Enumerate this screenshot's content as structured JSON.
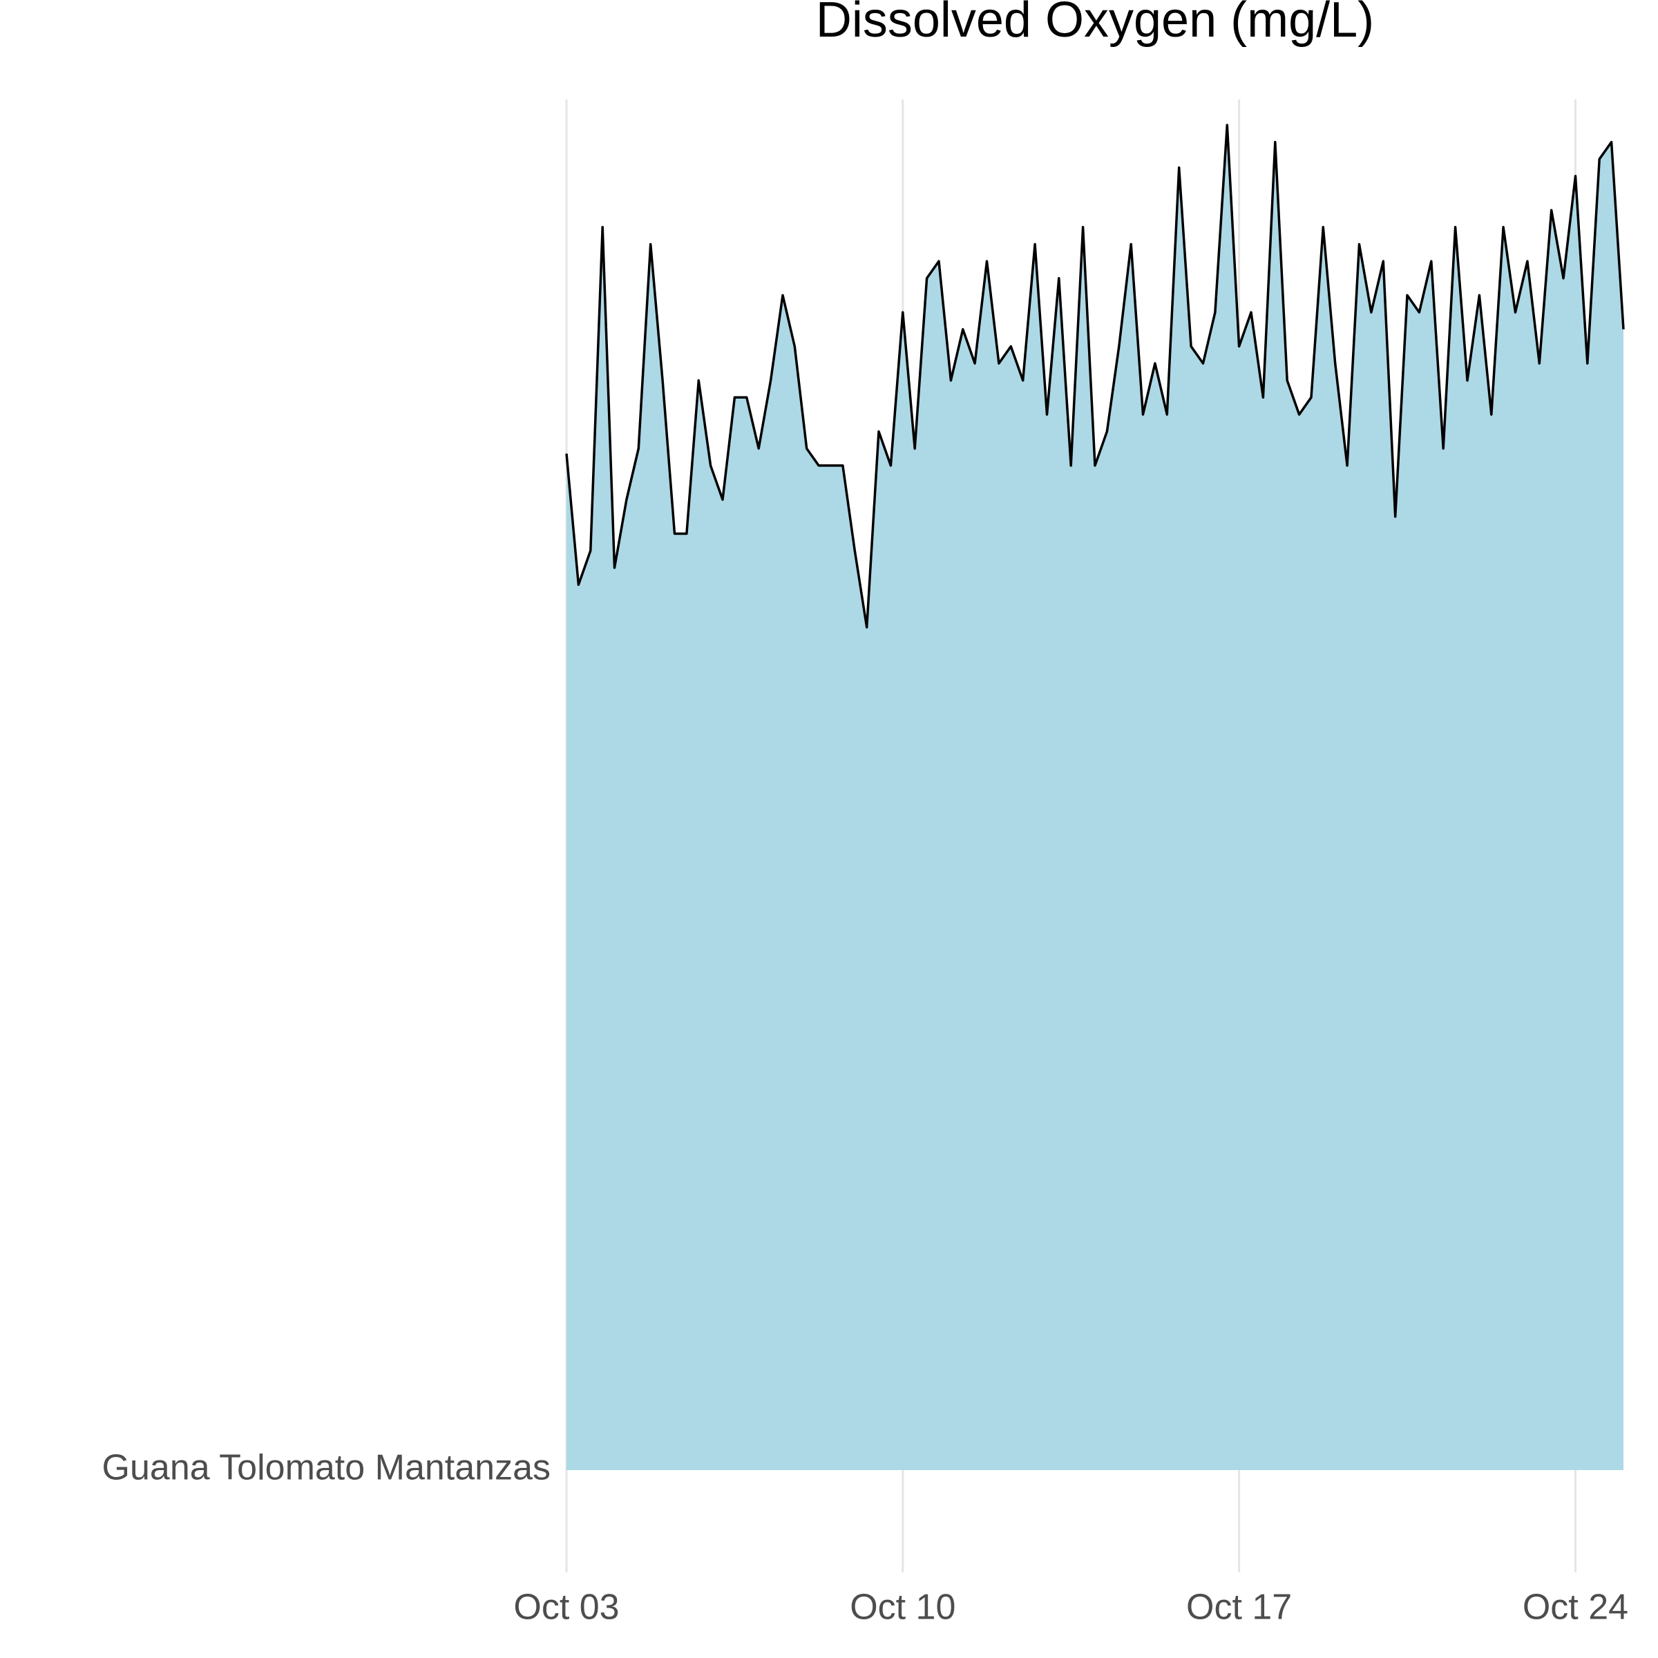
{
  "chart_data": {
    "type": "area",
    "title": "Dissolved Oxygen (mg/L)",
    "categories": [
      "Guana Tolomato Mantanzas"
    ],
    "x": [
      3,
      3.25,
      3.5,
      3.75,
      4,
      4.25,
      4.5,
      4.75,
      5,
      5.25,
      5.5,
      5.75,
      6,
      6.25,
      6.5,
      6.75,
      7,
      7.25,
      7.5,
      7.75,
      8,
      8.25,
      8.5,
      8.75,
      9,
      9.25,
      9.5,
      9.75,
      10,
      10.25,
      10.5,
      10.75,
      11,
      11.25,
      11.5,
      11.75,
      12,
      12.25,
      12.5,
      12.75,
      13,
      13.25,
      13.5,
      13.75,
      14,
      14.25,
      14.5,
      14.75,
      15,
      15.25,
      15.5,
      15.75,
      16,
      16.25,
      16.5,
      16.75,
      17,
      17.25,
      17.5,
      17.75,
      18,
      18.25,
      18.5,
      18.75,
      19,
      19.25,
      19.5,
      19.75,
      20,
      20.25,
      20.5,
      20.75,
      21,
      21.25,
      21.5,
      21.75,
      22,
      22.25,
      22.5,
      22.75,
      23,
      23.25,
      23.5,
      23.75,
      24,
      24.25,
      24.5,
      24.75,
      25
    ],
    "values": [
      5.97,
      5.2,
      5.4,
      7.3,
      5.3,
      5.7,
      6.0,
      7.2,
      6.4,
      5.5,
      5.5,
      6.4,
      5.9,
      5.7,
      6.3,
      6.3,
      6.0,
      6.4,
      6.9,
      6.6,
      6.0,
      5.9,
      5.9,
      5.9,
      5.4,
      4.95,
      6.1,
      5.9,
      6.8,
      6.0,
      7.0,
      7.1,
      6.4,
      6.7,
      6.5,
      7.1,
      6.5,
      6.6,
      6.4,
      7.2,
      6.2,
      7.0,
      5.9,
      7.3,
      5.9,
      6.1,
      6.6,
      7.2,
      6.2,
      6.5,
      6.2,
      7.65,
      6.6,
      6.5,
      6.8,
      7.9,
      6.6,
      6.8,
      6.3,
      7.8,
      6.4,
      6.2,
      6.3,
      7.3,
      6.5,
      5.9,
      7.2,
      6.8,
      7.1,
      5.6,
      6.9,
      6.8,
      7.1,
      6.0,
      7.3,
      6.4,
      6.9,
      6.2,
      7.3,
      6.8,
      7.1,
      6.5,
      7.4,
      7.0,
      7.6,
      6.5,
      7.7,
      7.8,
      6.7
    ],
    "color": "#add8e6",
    "line_color": "#000000",
    "xlim": [
      3,
      25
    ],
    "ylim": [
      0,
      8.05
    ],
    "xticks": [
      {
        "value": 3,
        "label": "Oct 03"
      },
      {
        "value": 10,
        "label": "Oct 10"
      },
      {
        "value": 17,
        "label": "Oct 17"
      },
      {
        "value": 24,
        "label": "Oct 24"
      }
    ],
    "grid": true
  }
}
